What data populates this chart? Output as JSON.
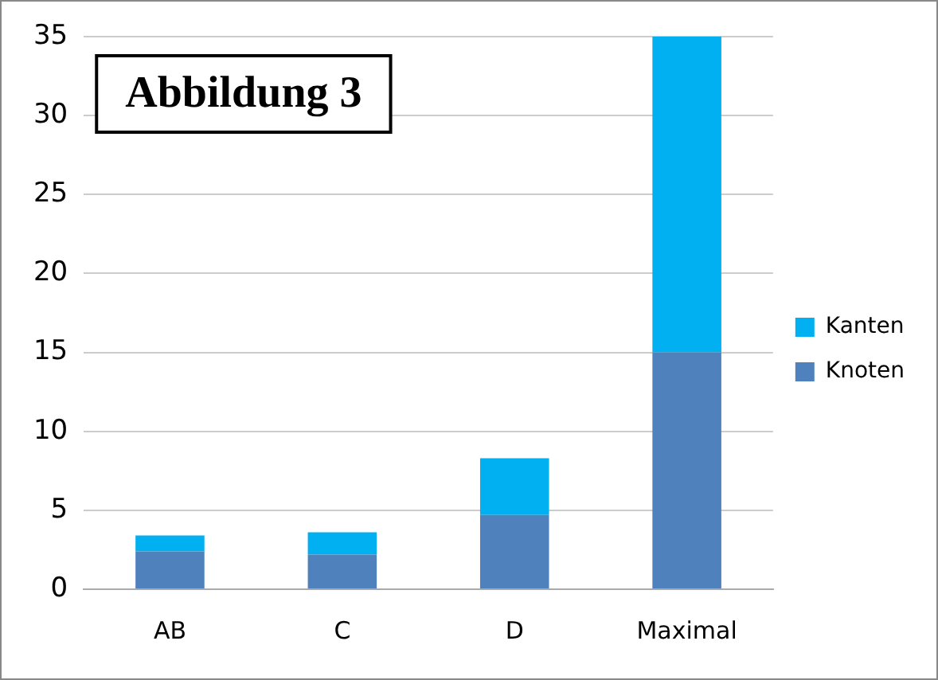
{
  "chart_data": {
    "type": "bar",
    "title": "Abbildung 3",
    "categories": [
      "AB",
      "C",
      "D",
      "Maximal"
    ],
    "stacked": true,
    "series": [
      {
        "name": "Knoten",
        "color": "#4f81bd",
        "values": [
          2.4,
          2.2,
          4.7,
          15
        ]
      },
      {
        "name": "Kanten",
        "color": "#00b0f0",
        "values": [
          1.0,
          1.4,
          3.6,
          20
        ]
      }
    ],
    "ylim": [
      0,
      35
    ],
    "yticks": [
      0,
      5,
      10,
      15,
      20,
      25,
      30,
      35
    ],
    "grid": "y",
    "legend": "right"
  }
}
